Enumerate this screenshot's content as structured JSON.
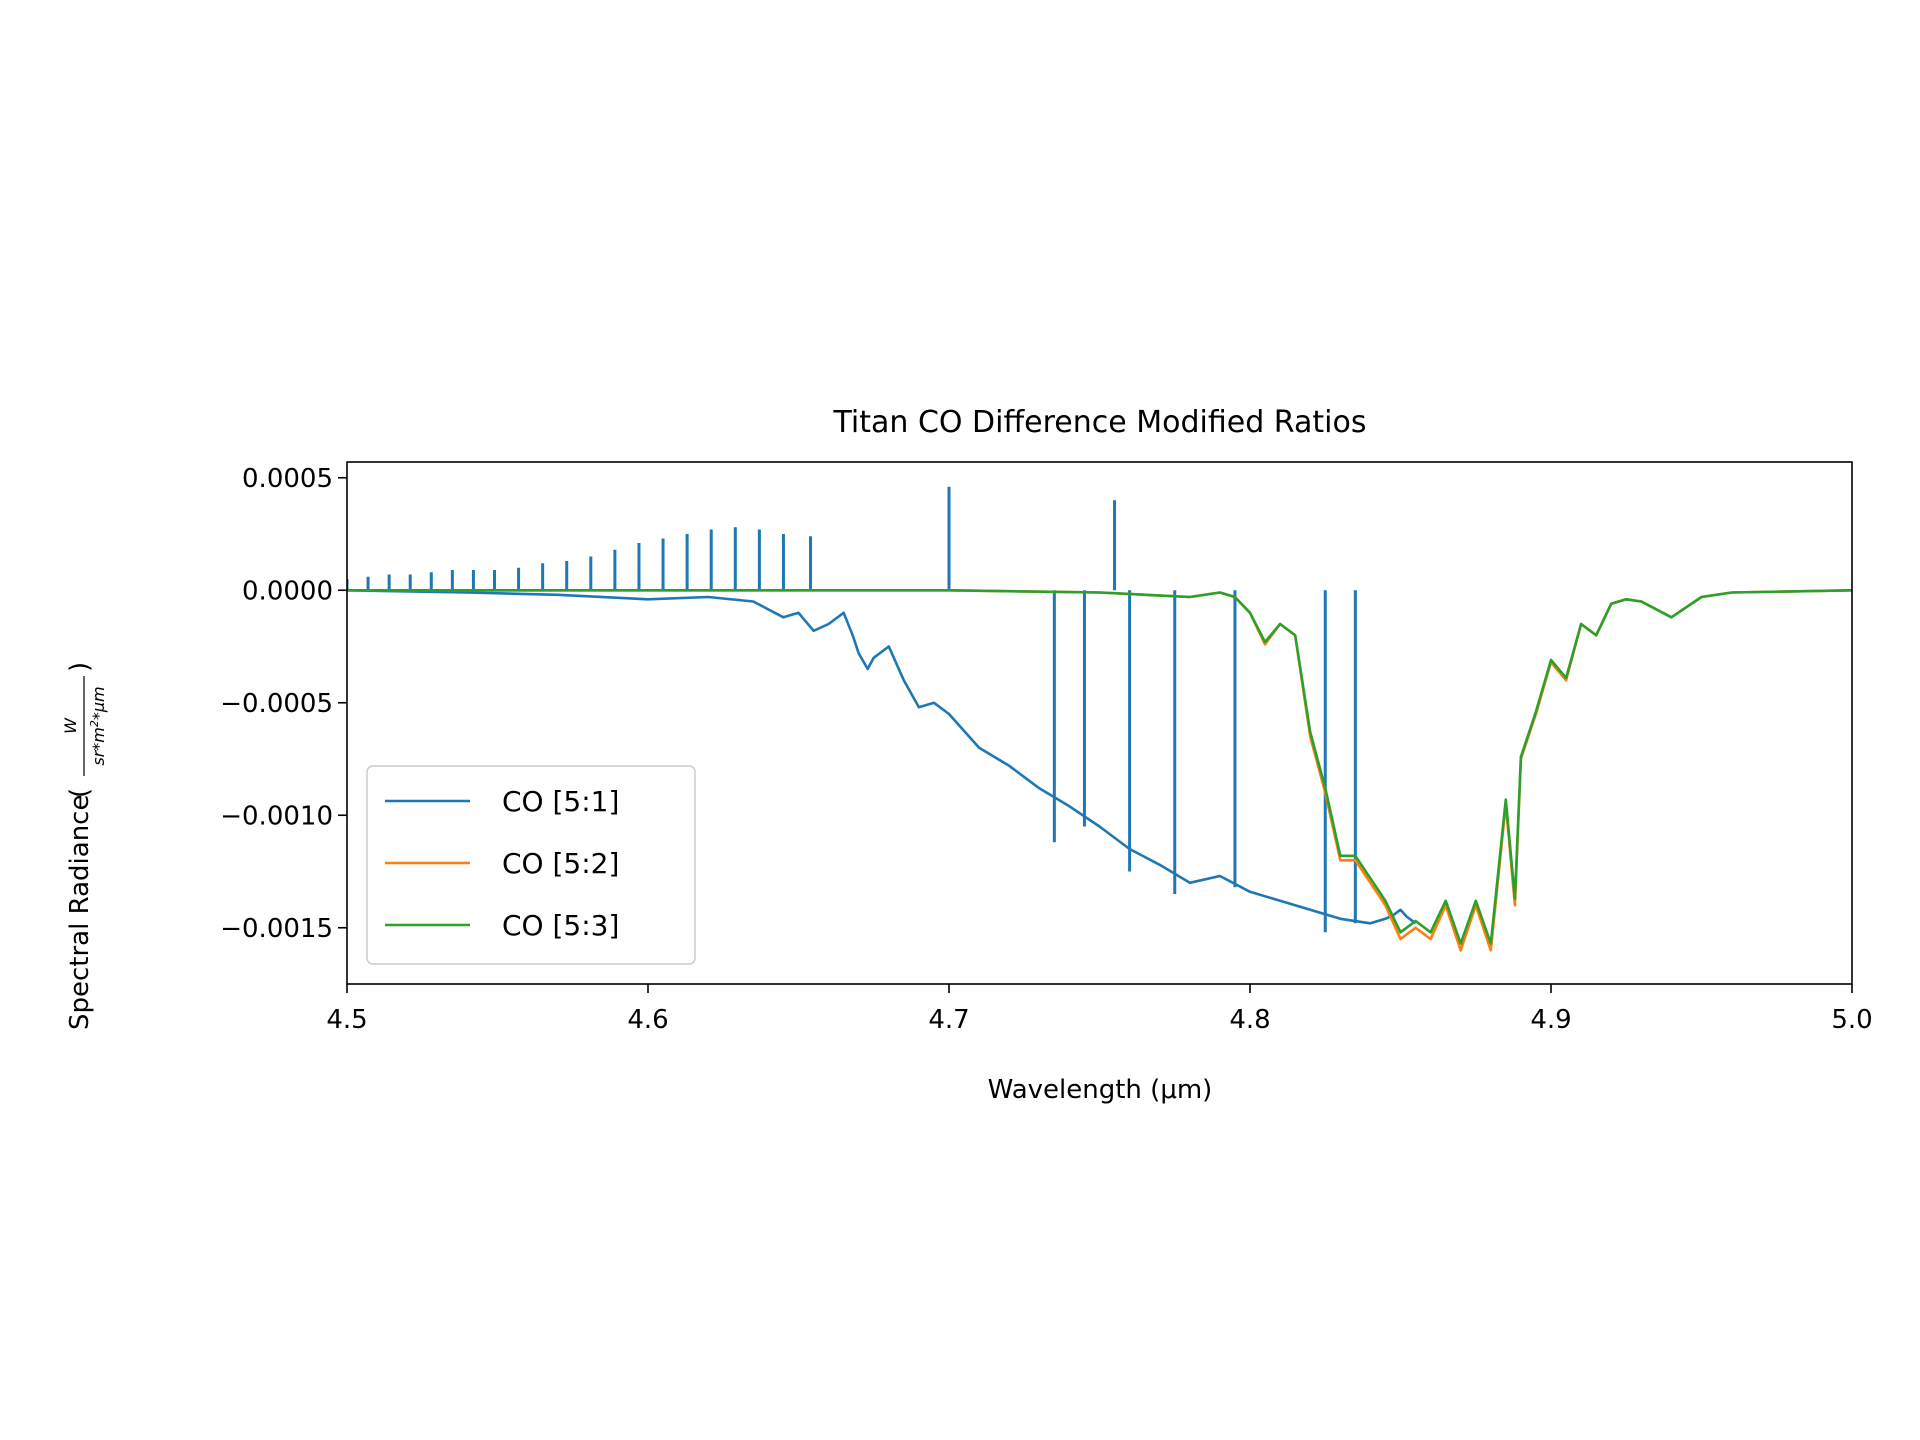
{
  "chart_data": {
    "type": "line",
    "title": "Titan CO Difference Modified Ratios",
    "xlabel": "Wavelength (μm)",
    "ylabel": "Spectral Radiance",
    "ylabel_unit": {
      "numerator": "W",
      "denominator": "sr*m²*μm",
      "denominator_parts": [
        "sr",
        "*",
        "m",
        "2",
        "*",
        "μm"
      ]
    },
    "xlim": [
      4.5,
      5.0
    ],
    "ylim": [
      -0.00175,
      0.00057
    ],
    "xticks": [
      4.5,
      4.6,
      4.7,
      4.8,
      4.9,
      5.0
    ],
    "xtick_labels": [
      "4.5",
      "4.6",
      "4.7",
      "4.8",
      "4.9",
      "5.0"
    ],
    "yticks": [
      0.0005,
      0.0,
      -0.0005,
      -0.001,
      -0.0015
    ],
    "ytick_labels": [
      "0.0005",
      "0.0000",
      "−0.0005",
      "−0.0010",
      "−0.0015"
    ],
    "grid": false,
    "legend_position": "lower-left",
    "series": [
      {
        "name": "CO [5:1]",
        "color": "#1f77b4",
        "x": [
          4.5,
          4.54,
          4.57,
          4.6,
          4.62,
          4.635,
          4.645,
          4.65,
          4.655,
          4.66,
          4.665,
          4.668,
          4.67,
          4.673,
          4.675,
          4.68,
          4.685,
          4.69,
          4.695,
          4.7,
          4.71,
          4.72,
          4.73,
          4.74,
          4.75,
          4.76,
          4.77,
          4.78,
          4.79,
          4.8,
          4.81,
          4.82,
          4.83,
          4.84,
          4.845,
          4.848,
          4.85,
          4.852,
          4.855
        ],
        "y": [
          0.0,
          -1e-05,
          -2e-05,
          -4e-05,
          -3e-05,
          -5e-05,
          -0.00012,
          -0.0001,
          -0.00018,
          -0.00015,
          -0.0001,
          -0.0002,
          -0.00028,
          -0.00035,
          -0.0003,
          -0.00025,
          -0.0004,
          -0.00052,
          -0.0005,
          -0.00055,
          -0.0007,
          -0.00078,
          -0.00088,
          -0.00096,
          -0.00105,
          -0.00115,
          -0.00122,
          -0.0013,
          -0.00127,
          -0.00134,
          -0.00138,
          -0.00142,
          -0.00146,
          -0.00148,
          -0.00146,
          -0.00144,
          -0.00142,
          -0.00145,
          -0.00148
        ],
        "peaks": [
          {
            "x": 4.5,
            "y": 5e-05
          },
          {
            "x": 4.507,
            "y": 6e-05
          },
          {
            "x": 4.514,
            "y": 7e-05
          },
          {
            "x": 4.521,
            "y": 7e-05
          },
          {
            "x": 4.528,
            "y": 8e-05
          },
          {
            "x": 4.535,
            "y": 9e-05
          },
          {
            "x": 4.542,
            "y": 9e-05
          },
          {
            "x": 4.549,
            "y": 9e-05
          },
          {
            "x": 4.557,
            "y": 0.0001
          },
          {
            "x": 4.565,
            "y": 0.00012
          },
          {
            "x": 4.573,
            "y": 0.00013
          },
          {
            "x": 4.581,
            "y": 0.00015
          },
          {
            "x": 4.589,
            "y": 0.00018
          },
          {
            "x": 4.597,
            "y": 0.00021
          },
          {
            "x": 4.605,
            "y": 0.00023
          },
          {
            "x": 4.613,
            "y": 0.00025
          },
          {
            "x": 4.621,
            "y": 0.00027
          },
          {
            "x": 4.629,
            "y": 0.00028
          },
          {
            "x": 4.637,
            "y": 0.00027
          },
          {
            "x": 4.645,
            "y": 0.00025
          },
          {
            "x": 4.654,
            "y": 0.00024
          },
          {
            "x": 4.7,
            "y": 0.00046
          },
          {
            "x": 4.755,
            "y": 0.0004
          }
        ],
        "dips": [
          {
            "x": 4.735,
            "y": -0.00112
          },
          {
            "x": 4.745,
            "y": -0.00105
          },
          {
            "x": 4.76,
            "y": -0.00125
          },
          {
            "x": 4.775,
            "y": -0.00135
          },
          {
            "x": 4.795,
            "y": -0.00132
          },
          {
            "x": 4.825,
            "y": -0.00152
          },
          {
            "x": 4.835,
            "y": -0.00148
          }
        ]
      },
      {
        "name": "CO [5:2]",
        "color": "#ff7f0e",
        "x": [
          4.5,
          4.6,
          4.7,
          4.75,
          4.78,
          4.79,
          4.795,
          4.8,
          4.805,
          4.81,
          4.815,
          4.82,
          4.825,
          4.83,
          4.835,
          4.84,
          4.845,
          4.85,
          4.855,
          4.86,
          4.865,
          4.87,
          4.875,
          4.88,
          4.885,
          4.888,
          4.89,
          4.895,
          4.9,
          4.905,
          4.91,
          4.915,
          4.92,
          4.925,
          4.93,
          4.94,
          4.95,
          4.96,
          5.0
        ],
        "y": [
          0.0,
          0.0,
          0.0,
          -1e-05,
          -3e-05,
          -1e-05,
          -3e-05,
          -0.0001,
          -0.00024,
          -0.00015,
          -0.0002,
          -0.00065,
          -0.0009,
          -0.0012,
          -0.0012,
          -0.0013,
          -0.0014,
          -0.00155,
          -0.0015,
          -0.00155,
          -0.0014,
          -0.0016,
          -0.0014,
          -0.0016,
          -0.00095,
          -0.0014,
          -0.00075,
          -0.00055,
          -0.00032,
          -0.0004,
          -0.00015,
          -0.0002,
          -6e-05,
          -4e-05,
          -5e-05,
          -0.00012,
          -3e-05,
          -1e-05,
          0.0
        ]
      },
      {
        "name": "CO [5:3]",
        "color": "#2ca02c",
        "x": [
          4.5,
          4.6,
          4.7,
          4.75,
          4.78,
          4.79,
          4.795,
          4.8,
          4.805,
          4.81,
          4.815,
          4.82,
          4.825,
          4.83,
          4.835,
          4.84,
          4.845,
          4.85,
          4.855,
          4.86,
          4.865,
          4.87,
          4.875,
          4.88,
          4.885,
          4.888,
          4.89,
          4.895,
          4.9,
          4.905,
          4.91,
          4.915,
          4.92,
          4.925,
          4.93,
          4.94,
          4.95,
          4.96,
          5.0
        ],
        "y": [
          0.0,
          0.0,
          0.0,
          -1e-05,
          -3e-05,
          -1e-05,
          -3e-05,
          -0.0001,
          -0.00023,
          -0.00015,
          -0.0002,
          -0.00063,
          -0.00088,
          -0.00118,
          -0.00118,
          -0.00128,
          -0.00138,
          -0.00152,
          -0.00147,
          -0.00152,
          -0.00138,
          -0.00157,
          -0.00138,
          -0.00157,
          -0.00093,
          -0.00137,
          -0.00074,
          -0.00054,
          -0.00031,
          -0.00039,
          -0.00015,
          -0.0002,
          -6e-05,
          -4e-05,
          -5e-05,
          -0.00012,
          -3e-05,
          -1e-05,
          0.0
        ]
      }
    ]
  }
}
